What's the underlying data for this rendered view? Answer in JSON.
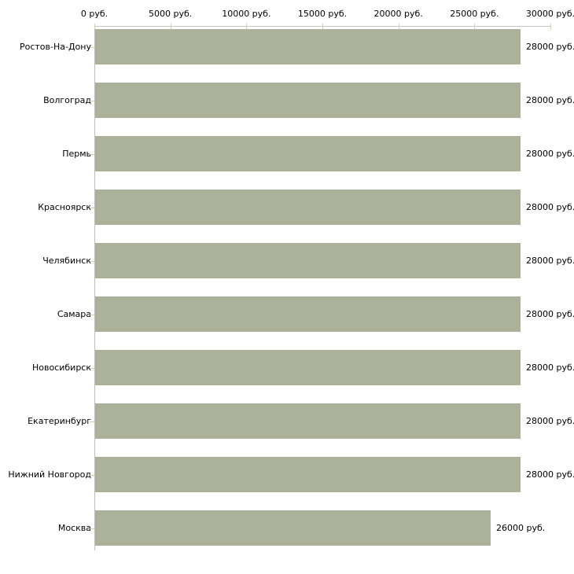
{
  "chart_data": {
    "type": "bar",
    "orientation": "horizontal",
    "title": "",
    "xlabel": "",
    "ylabel": "",
    "categories": [
      "Ростов-На-Дону",
      "Волгоград",
      "Пермь",
      "Красноярск",
      "Челябинск",
      "Самара",
      "Новосибирск",
      "Екатеринбург",
      "Нижний Новгород",
      "Москва"
    ],
    "values": [
      28000,
      28000,
      28000,
      28000,
      28000,
      28000,
      28000,
      28000,
      28000,
      26000
    ],
    "value_labels": [
      "28000 руб.",
      "28000 руб.",
      "28000 руб.",
      "28000 руб.",
      "28000 руб.",
      "28000 руб.",
      "28000 руб.",
      "28000 руб.",
      "28000 руб.",
      "26000 руб."
    ],
    "x_ticks": [
      {
        "value": 0,
        "label": "0 руб."
      },
      {
        "value": 5000,
        "label": "5000 руб."
      },
      {
        "value": 10000,
        "label": "10000 руб."
      },
      {
        "value": 15000,
        "label": "15000 руб."
      },
      {
        "value": 20000,
        "label": "20000 руб."
      },
      {
        "value": 25000,
        "label": "25000 руб."
      },
      {
        "value": 30000,
        "label": "30000 руб."
      }
    ],
    "xlim": [
      0,
      30000
    ],
    "grid": false,
    "legend": false,
    "axis_position": "top",
    "colors": {
      "bar": "#acb29a",
      "axis_line": "#c6c6c6",
      "tick_mark": "#d3cdab",
      "text": "#000000",
      "background": "#ffffff"
    }
  }
}
